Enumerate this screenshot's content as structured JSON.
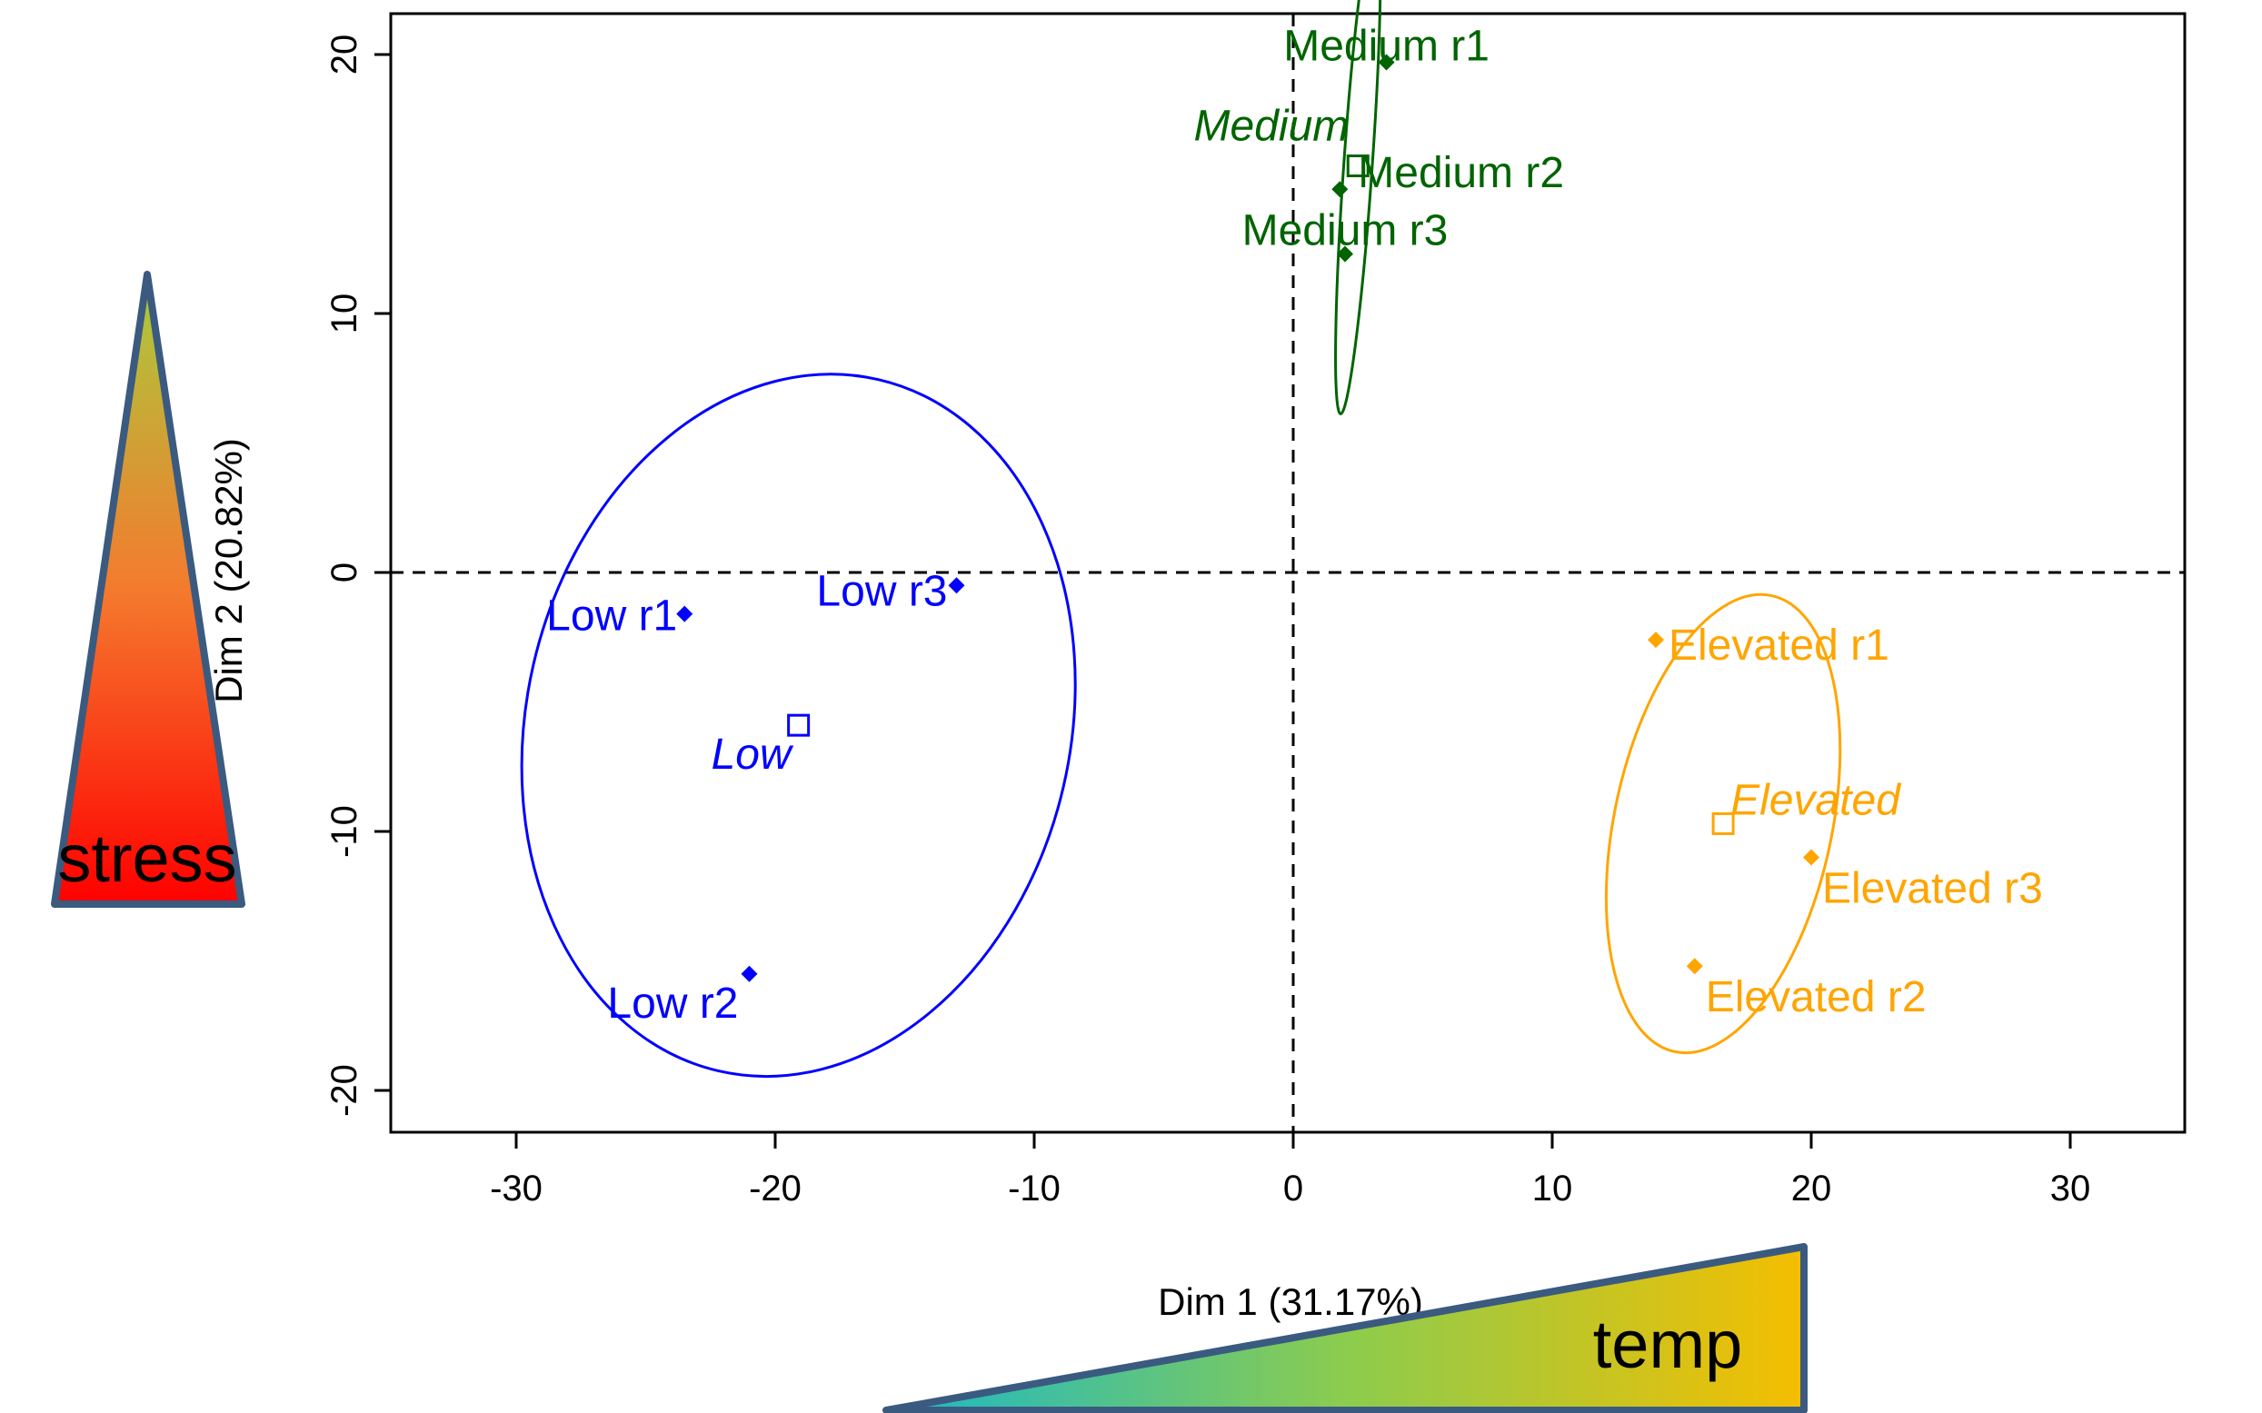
{
  "chart_data": {
    "type": "scatter",
    "title": "",
    "xlabel": "Dim 1 (31.17%)",
    "ylabel": "Dim 2 (20.82%)",
    "xlim": [
      -30,
      30
    ],
    "ylim": [
      -20,
      20
    ],
    "xticks": [
      -30,
      -20,
      -10,
      0,
      10,
      20,
      30
    ],
    "yticks": [
      -20,
      -10,
      0,
      10,
      20
    ],
    "reference_lines": {
      "x": 0,
      "y": 0,
      "style": "dashed"
    },
    "groups": [
      {
        "name": "Low",
        "color": "#0000FF",
        "centroid": [
          -19.1,
          -5.9
        ],
        "ellipse": {
          "center": [
            -19.1,
            -5.9
          ],
          "rx": 10.5,
          "ry": 13.7,
          "angle_deg": 13
        },
        "points": [
          {
            "label": "Low r1",
            "x": -23.5,
            "y": -1.6
          },
          {
            "label": "Low r2",
            "x": -21.0,
            "y": -15.5
          },
          {
            "label": "Low r3",
            "x": -13.0,
            "y": -0.5
          }
        ]
      },
      {
        "name": "Medium",
        "color": "#006400",
        "centroid": [
          2.5,
          15.7
        ],
        "ellipse": {
          "center": [
            2.5,
            15.7
          ],
          "rx": 0.55,
          "ry": 9.6,
          "angle_deg": 4
        },
        "points": [
          {
            "label": "Medium r1",
            "x": 3.6,
            "y": 19.7
          },
          {
            "label": "Medium r2",
            "x": 1.8,
            "y": 14.8
          },
          {
            "label": "Medium r3",
            "x": 2.0,
            "y": 12.3
          }
        ]
      },
      {
        "name": "Elevated",
        "color": "#FFA500",
        "centroid": [
          16.6,
          -9.7
        ],
        "ellipse": {
          "center": [
            16.6,
            -9.7
          ],
          "rx": 4.2,
          "ry": 9.0,
          "angle_deg": 12
        },
        "points": [
          {
            "label": "Elevated r1",
            "x": 14.0,
            "y": -2.6
          },
          {
            "label": "Elevated r2",
            "x": 15.5,
            "y": -15.2
          },
          {
            "label": "Elevated r3",
            "x": 20.0,
            "y": -11.0
          }
        ]
      }
    ]
  },
  "annotations": {
    "stress": {
      "label": "stress",
      "gradient": [
        "#ff0000",
        "#f47a2e",
        "#a8cc3c"
      ]
    },
    "temp": {
      "label": "temp",
      "gradient": [
        "#1ab8c9",
        "#8ccc4e",
        "#f5be00"
      ]
    }
  }
}
